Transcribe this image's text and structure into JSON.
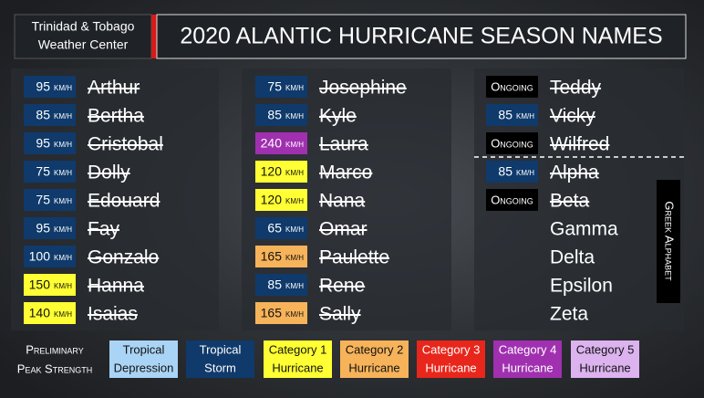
{
  "header": {
    "org": [
      "Trinidad & Tobago",
      "Weather Center"
    ],
    "title": "2020 ALANTIC HURRICANE SEASON NAMES"
  },
  "unit": "KM/H",
  "columns": [
    {
      "storms": [
        {
          "name": "Arthur",
          "speed": 95,
          "color": "#0f3a6b",
          "retired": true
        },
        {
          "name": "Bertha",
          "speed": 85,
          "color": "#0f3a6b",
          "retired": true
        },
        {
          "name": "Cristobal",
          "speed": 95,
          "color": "#0f3a6b",
          "retired": true
        },
        {
          "name": "Dolly",
          "speed": 75,
          "color": "#0f3a6b",
          "retired": true
        },
        {
          "name": "Edouard",
          "speed": 75,
          "color": "#0f3a6b",
          "retired": true
        },
        {
          "name": "Fay",
          "speed": 95,
          "color": "#0f3a6b",
          "retired": true
        },
        {
          "name": "Gonzalo",
          "speed": 100,
          "color": "#0f3a6b",
          "retired": true
        },
        {
          "name": "Hanna",
          "speed": 150,
          "color": "#ffff33",
          "retired": true
        },
        {
          "name": "Isaias",
          "speed": 140,
          "color": "#ffff33",
          "retired": true
        }
      ]
    },
    {
      "storms": [
        {
          "name": "Josephine",
          "speed": 75,
          "color": "#0f3a6b",
          "retired": true
        },
        {
          "name": "Kyle",
          "speed": 85,
          "color": "#0f3a6b",
          "retired": true
        },
        {
          "name": "Laura",
          "speed": 240,
          "color": "#a030b0",
          "retired": true
        },
        {
          "name": "Marco",
          "speed": 120,
          "color": "#ffff33",
          "retired": true
        },
        {
          "name": "Nana",
          "speed": 120,
          "color": "#ffff33",
          "retired": true
        },
        {
          "name": "Omar",
          "speed": 65,
          "color": "#0f3a6b",
          "retired": true
        },
        {
          "name": "Paulette",
          "speed": 165,
          "color": "#f7b35a",
          "retired": true
        },
        {
          "name": "Rene",
          "speed": 85,
          "color": "#0f3a6b",
          "retired": true
        },
        {
          "name": "Sally",
          "speed": 165,
          "color": "#f7b35a",
          "retired": true
        }
      ]
    },
    {
      "storms": [
        {
          "name": "Teddy",
          "badge": "Ongoing",
          "color": "#000000",
          "retired": true
        },
        {
          "name": "Vicky",
          "speed": 85,
          "color": "#0f3a6b",
          "retired": true
        },
        {
          "name": "Wilfred",
          "badge": "Ongoing",
          "color": "#000000",
          "retired": true
        },
        {
          "name": "Alpha",
          "speed": 85,
          "color": "#0f3a6b",
          "retired": true
        },
        {
          "name": "Beta",
          "badge": "Ongoing",
          "color": "#000000",
          "retired": true
        },
        {
          "name": "Gamma",
          "retired": false
        },
        {
          "name": "Delta",
          "retired": false
        },
        {
          "name": "Epsilon",
          "retired": false
        },
        {
          "name": "Zeta",
          "retired": false
        }
      ]
    }
  ],
  "side_label": "Greek Alphabet",
  "legend": {
    "title": [
      "Preliminary",
      "Peak Strength"
    ],
    "items": [
      {
        "label": [
          "Tropical",
          "Depression"
        ],
        "color": "#aad4f5"
      },
      {
        "label": [
          "Tropical",
          "Storm"
        ],
        "color": "#0f3a6b"
      },
      {
        "label": [
          "Category 1",
          "Hurricane"
        ],
        "color": "#ffff33"
      },
      {
        "label": [
          "Category 2",
          "Hurricane"
        ],
        "color": "#f7b35a"
      },
      {
        "label": [
          "Category 3",
          "Hurricane"
        ],
        "color": "#e8261b"
      },
      {
        "label": [
          "Category 4",
          "Hurricane"
        ],
        "color": "#a030b0"
      },
      {
        "label": [
          "Category 5",
          "Hurricane"
        ],
        "color": "#dcb3ee"
      }
    ]
  }
}
